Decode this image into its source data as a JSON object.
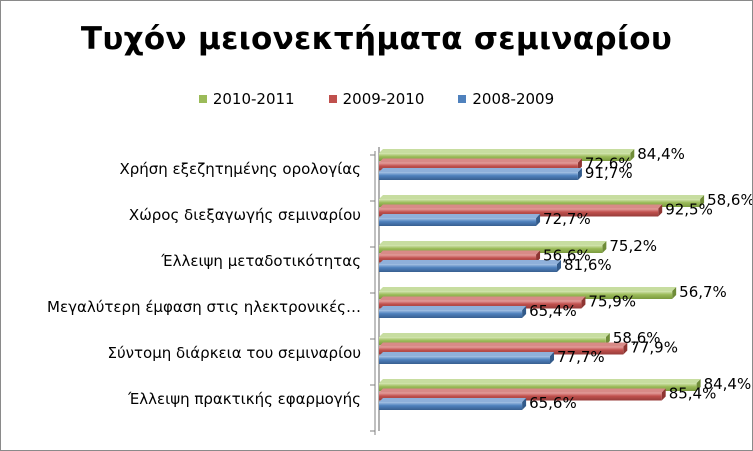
{
  "chart_data": {
    "type": "bar",
    "orientation": "horizontal",
    "title": "Τυχόν μειονεκτήματα σεμιναρίου",
    "categories": [
      "Χρήση εξεζητημένης ορολογίας",
      "Χώρος διεξαγωγής σεμιναρίου",
      "Έλλειψη μεταδοτικότητας",
      "Μεγαλύτερη έμφαση στις ηλεκτρονικές…",
      "Σύντομη διάρκεια του σεμιναρίου",
      "Έλλειψη πρακτικής εφαρμογής"
    ],
    "series": [
      {
        "name": "2010-2011",
        "color": "#9BBB59",
        "values": [
          84.4,
          58.6,
          75.2,
          56.7,
          58.6,
          84.4
        ],
        "labels": [
          "84,4%",
          "58,6%",
          "75,2%",
          "56,7%",
          "58,6%",
          "84,4%"
        ]
      },
      {
        "name": "2009-2010",
        "color": "#C0504D",
        "values": [
          72.6,
          92.5,
          56.6,
          75.9,
          77.9,
          85.4
        ],
        "labels": [
          "72,6%",
          "92,5%",
          "56,6%",
          "75,9%",
          "77,9%",
          "85,4%"
        ]
      },
      {
        "name": "2008-2009",
        "color": "#4F81BD",
        "values": [
          91.7,
          72.7,
          81.6,
          65.4,
          77.7,
          65.6
        ],
        "labels": [
          "91,7%",
          "72,7%",
          "81,6%",
          "65,4%",
          "77,7%",
          "65,6%"
        ]
      }
    ],
    "bar_lengths_fraction": {
      "2010-2011": [
        0.72,
        0.92,
        0.64,
        0.84,
        0.65,
        0.91
      ],
      "2009-2010": [
        0.57,
        0.8,
        0.45,
        0.58,
        0.7,
        0.81
      ],
      "2008-2009": [
        0.57,
        0.45,
        0.51,
        0.41,
        0.49,
        0.41
      ]
    },
    "legend_position": "top",
    "grid": false,
    "axis_labels_shown": false
  }
}
